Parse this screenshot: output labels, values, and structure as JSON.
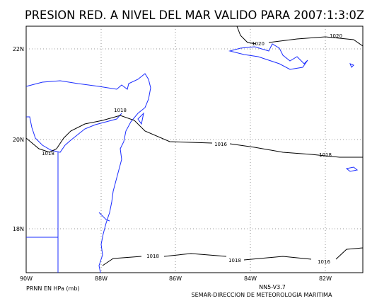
{
  "title": "PRESION RED. A NIVEL DEL MAR VALIDO PARA 2007:1:3:0Z",
  "map": {
    "lon_labels": [
      "90W",
      "88W",
      "86W",
      "84W",
      "82W"
    ],
    "lat_labels": [
      "22N",
      "20N",
      "18N"
    ],
    "isobar_labels": [
      "1020",
      "1020",
      "1018",
      "1016",
      "1018",
      "1018",
      "1018",
      "1018",
      "1016"
    ]
  },
  "footer": {
    "variable": "PRNN EN HPa (mb)",
    "model": "NN5-V3.7",
    "source": "SEMAR-DIRECCION DE METEOROLOGIA MARITIMA"
  }
}
